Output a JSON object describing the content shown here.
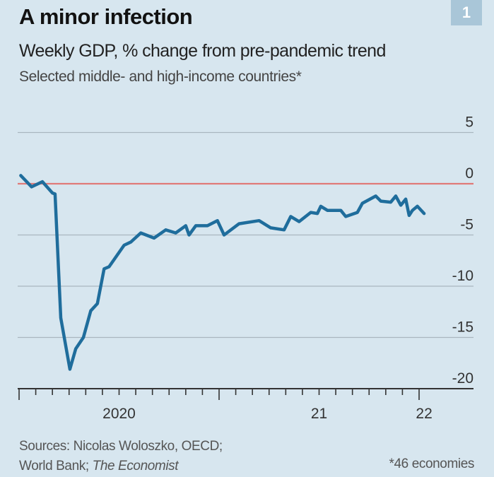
{
  "header": {
    "title": "A minor infection",
    "subtitle": "Weekly GDP, % change from pre-pandemic trend",
    "subtitle2": "Selected middle- and high-income countries*",
    "chart_number": "1"
  },
  "footer": {
    "sources_line1": "Sources: Nicolas Woloszko, OECD;",
    "sources_line2_prefix": "World Bank; ",
    "sources_line2_italic": "The Economist",
    "note": "*46 economies"
  },
  "colors": {
    "background": "#d7e6ef",
    "line": "#1f6d9c",
    "zero_line": "#e07a78",
    "grid": "#a9b6bf"
  },
  "chart_data": {
    "type": "line",
    "title": "A minor infection",
    "ylabel": "Weekly GDP, % change from pre-pandemic trend",
    "xlabel": "",
    "ylim": [
      -20,
      5
    ],
    "yticks": [
      5,
      0,
      -5,
      -10,
      -15,
      -20
    ],
    "ytick_labels": [
      "5",
      "0",
      "-5",
      "-10",
      "-15",
      "-20"
    ],
    "xlim_months_since_jan2020": [
      0,
      24.5
    ],
    "xtick_labels": [
      {
        "label": "2020",
        "month": 6
      },
      {
        "label": "21",
        "month": 18
      },
      {
        "label": "22",
        "month": 24.3
      }
    ],
    "reference_line": 0,
    "series": [
      {
        "name": "Weekly GDP",
        "x_months_since_jan2020": [
          0.1,
          0.75,
          1.4,
          2.0,
          2.16,
          2.5,
          3.05,
          3.4,
          3.86,
          4.3,
          4.7,
          5.1,
          5.4,
          6.3,
          6.7,
          7.3,
          8.1,
          8.8,
          9.4,
          10,
          10.2,
          10.6,
          11.3,
          11.9,
          12.3,
          13.2,
          14.4,
          15.1,
          15.9,
          16.3,
          16.8,
          17.5,
          17.9,
          18.1,
          18.5,
          19.3,
          19.6,
          20.3,
          20.6,
          21.4,
          21.7,
          22.3,
          22.6,
          22.9,
          23.2,
          23.4,
          23.6,
          23.9,
          24.3
        ],
        "values": [
          0.8,
          -0.3,
          0.2,
          -0.9,
          -1.0,
          -13.1,
          -18.1,
          -16.1,
          -15.0,
          -12.4,
          -11.7,
          -8.3,
          -8.1,
          -6.0,
          -5.7,
          -4.8,
          -5.3,
          -4.5,
          -4.8,
          -4.1,
          -5.0,
          -4.1,
          -4.1,
          -3.6,
          -5.0,
          -3.9,
          -3.6,
          -4.3,
          -4.5,
          -3.2,
          -3.7,
          -2.8,
          -2.9,
          -2.2,
          -2.6,
          -2.6,
          -3.2,
          -2.8,
          -1.9,
          -1.2,
          -1.7,
          -1.8,
          -1.2,
          -2.1,
          -1.5,
          -3.1,
          -2.6,
          -2.2,
          -2.9
        ]
      }
    ]
  }
}
